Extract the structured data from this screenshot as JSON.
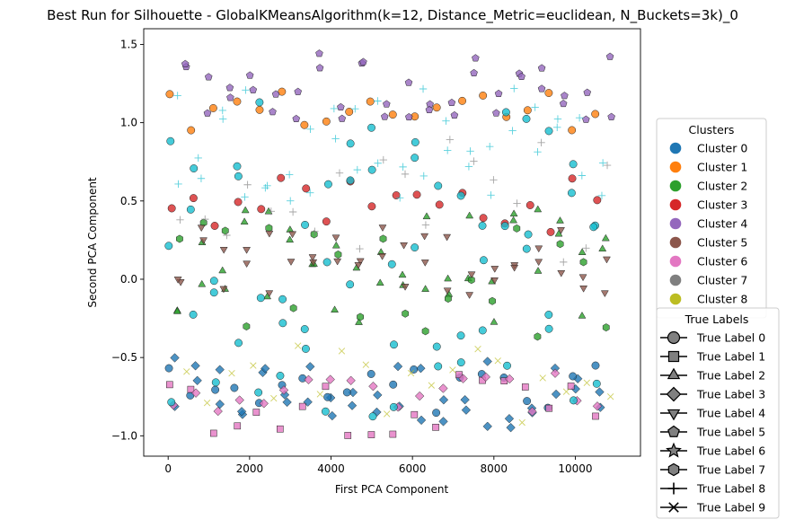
{
  "chart_data": {
    "type": "scatter",
    "title": "Best Run for Silhouette - GlobalKMeansAlgorithm(k=12, Distance_Metric=euclidean, N_Buckets=3k)_0",
    "xlabel": "First PCA Component",
    "ylabel": "Second PCA Component",
    "xlim": [
      -600,
      11600
    ],
    "ylim": [
      -1.13,
      1.6
    ],
    "xticks": [
      0,
      2000,
      4000,
      6000,
      8000,
      10000
    ],
    "yticks": [
      -1.0,
      -0.5,
      0.0,
      0.5,
      1.0,
      1.5
    ],
    "xtick_labels": [
      "0",
      "2000",
      "4000",
      "6000",
      "8000",
      "10000"
    ],
    "ytick_labels": [
      "−1.0",
      "−0.5",
      "0.0",
      "0.5",
      "1.0",
      "1.5"
    ],
    "grid": false,
    "cluster_legend": {
      "title": "Clusters",
      "placement": "right",
      "entries": [
        {
          "label": "Cluster 0",
          "color": "#1f77b4"
        },
        {
          "label": "Cluster 1",
          "color": "#ff7f0e"
        },
        {
          "label": "Cluster 2",
          "color": "#2ca02c"
        },
        {
          "label": "Cluster 3",
          "color": "#d62728"
        },
        {
          "label": "Cluster 4",
          "color": "#9467bd"
        },
        {
          "label": "Cluster 5",
          "color": "#8c564b"
        },
        {
          "label": "Cluster 6",
          "color": "#e377c2"
        },
        {
          "label": "Cluster 7",
          "color": "#7f7f7f"
        },
        {
          "label": "Cluster 8",
          "color": "#bcbd22"
        }
      ]
    },
    "true_label_legend": {
      "title": "True Labels",
      "placement": "lower-right",
      "entries": [
        {
          "label": "True Label 0",
          "marker": "circle"
        },
        {
          "label": "True Label 1",
          "marker": "square"
        },
        {
          "label": "True Label 2",
          "marker": "triangle-up"
        },
        {
          "label": "True Label 3",
          "marker": "diamond"
        },
        {
          "label": "True Label 4",
          "marker": "triangle-down"
        },
        {
          "label": "True Label 5",
          "marker": "pentagon"
        },
        {
          "label": "True Label 6",
          "marker": "star"
        },
        {
          "label": "True Label 7",
          "marker": "hexagon"
        },
        {
          "label": "True Label 8",
          "marker": "plus"
        },
        {
          "label": "True Label 9",
          "marker": "x"
        }
      ]
    },
    "columns": {
      "x_start": 0,
      "x_step": 550,
      "count": 20
    },
    "series": [
      {
        "cluster": 0,
        "color": "#1f77b4",
        "true_label": 3,
        "marker": "diamond",
        "x_offset": 150,
        "y": [
          -0.95,
          -0.5
        ],
        "n": 2
      },
      {
        "cluster": 0,
        "color": "#1f77b4",
        "true_label": 0,
        "marker": "circle",
        "x_offset": 20,
        "y": [
          -0.95,
          -0.55
        ],
        "n": 1
      },
      {
        "cluster": 1,
        "color": "#ff7f0e",
        "true_label": 0,
        "marker": "circle",
        "x_offset": 30,
        "y": [
          0.95,
          1.22
        ],
        "n": 1
      },
      {
        "cluster": 2,
        "color": "#2ca02c",
        "true_label": 2,
        "marker": "triangle-up",
        "x_offset": 260,
        "y": [
          -0.3,
          0.45
        ],
        "n": 2
      },
      {
        "cluster": 2,
        "color": "#2ca02c",
        "true_label": 7,
        "marker": "hexagon",
        "x_offset": 300,
        "y": [
          -0.4,
          0.4
        ],
        "n": 1
      },
      {
        "cluster": 3,
        "color": "#d62728",
        "true_label": 0,
        "marker": "circle",
        "x_offset": 60,
        "y": [
          0.3,
          0.65
        ],
        "n": 1
      },
      {
        "cluster": 4,
        "color": "#9467bd",
        "true_label": 5,
        "marker": "pentagon",
        "x_offset": 400,
        "y": [
          1.0,
          1.45
        ],
        "n": 2
      },
      {
        "cluster": 5,
        "color": "#8c564b",
        "true_label": 4,
        "marker": "triangle-down",
        "x_offset": 280,
        "y": [
          -0.1,
          0.35
        ],
        "n": 2
      },
      {
        "cluster": 6,
        "color": "#e377c2",
        "true_label": 1,
        "marker": "square",
        "x_offset": 10,
        "y": [
          -1.0,
          -0.6
        ],
        "n": 1
      },
      {
        "cluster": 6,
        "color": "#e377c2",
        "true_label": 3,
        "marker": "diamond",
        "x_offset": 120,
        "y": [
          -0.85,
          -0.6
        ],
        "n": 1
      },
      {
        "cluster": 7,
        "color": "#7f7f7f",
        "true_label": 8,
        "marker": "plus",
        "x_offset": 320,
        "y": [
          0.1,
          0.9
        ],
        "n": 1
      },
      {
        "cluster": 8,
        "color": "#bcbd22",
        "true_label": 9,
        "marker": "x",
        "x_offset": 420,
        "y": [
          -0.95,
          -0.4
        ],
        "n": 1
      },
      {
        "cluster": 9,
        "color": "#17becf",
        "true_label": 0,
        "marker": "circle",
        "x_offset": 40,
        "y": [
          -0.9,
          1.2
        ],
        "n": 3
      },
      {
        "cluster": 9,
        "color": "#17becf",
        "true_label": 8,
        "marker": "plus",
        "x_offset": 230,
        "y": [
          0.5,
          1.3
        ],
        "n": 2
      }
    ]
  }
}
